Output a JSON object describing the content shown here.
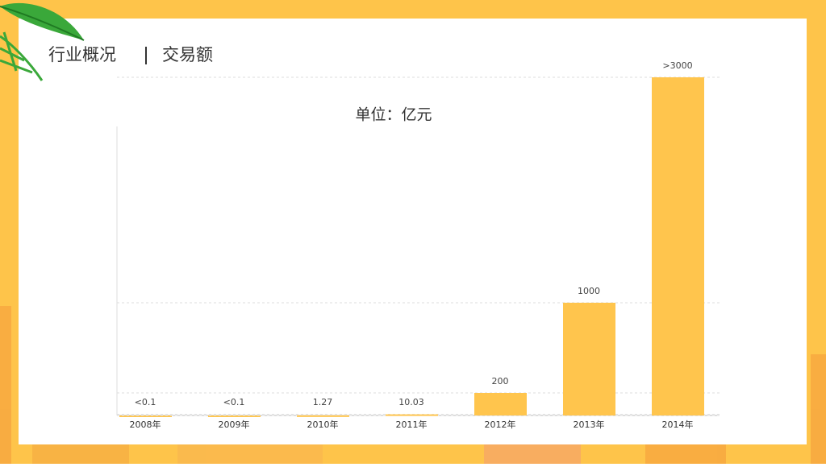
{
  "header": {
    "title": "行业概况",
    "subtitle": "交易额"
  },
  "chart_data": {
    "type": "bar",
    "title": "单位：亿元",
    "categories": [
      "2008年",
      "2009年",
      "2010年",
      "2011年",
      "2012年",
      "2013年",
      "2014年"
    ],
    "values": [
      0.1,
      0.1,
      1.27,
      10.03,
      200,
      1000,
      3000
    ],
    "value_labels": [
      "<0.1",
      "<0.1",
      "1.27",
      "10.03",
      "200",
      "1000",
      ">3000"
    ],
    "color": "#ffc54d",
    "ylim": [
      0,
      3000
    ]
  }
}
